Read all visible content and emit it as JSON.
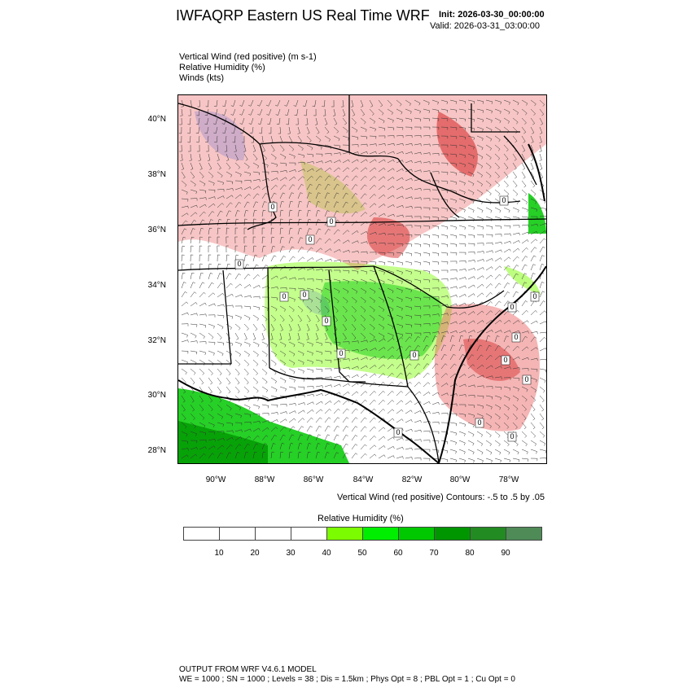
{
  "header": {
    "title": "IWFAQRP Eastern US Real Time WRF",
    "init": "Init: 2026-03-30_00:00:00",
    "valid": "Valid: 2026-03-31_03:00:00"
  },
  "fields": [
    "Vertical Wind (red positive)   (m s-1)",
    "Relative Humidity   (%)",
    "Winds   (kts)"
  ],
  "map": {
    "lat_labels": [
      "40°N",
      "38°N",
      "36°N",
      "34°N",
      "32°N",
      "30°N",
      "28°N"
    ],
    "lon_labels": [
      "90°W",
      "88°W",
      "86°W",
      "84°W",
      "82°W",
      "80°W",
      "78°W"
    ],
    "contour_labels": [
      "0",
      "0",
      "0",
      "0",
      "0",
      "0",
      "0",
      "0",
      "0",
      "0",
      "0",
      "0",
      "0",
      "0",
      "0",
      "0",
      "0",
      "0"
    ],
    "colors": {
      "vertical_up": "#cc0000",
      "vertical_down": "#1a3cd6",
      "state_lines": "#000000"
    }
  },
  "contour_note": "Vertical Wind (red positive) Contours: -.5 to .5 by .05",
  "colorbar": {
    "title": "Relative Humidity  (%)",
    "colors": [
      "#ffffff",
      "#ffffff",
      "#ffffff",
      "#ffffff",
      "#7cfc00",
      "#00ee00",
      "#00c800",
      "#009600",
      "#228b22",
      "#4f8b57"
    ],
    "labels": [
      "10",
      "20",
      "30",
      "40",
      "50",
      "60",
      "70",
      "80",
      "90"
    ]
  },
  "footer": {
    "line1": "OUTPUT FROM WRF V4.6.1 MODEL",
    "line2": "WE = 1000 ; SN = 1000 ; Levels = 38 ; Dis = 1.5km ; Phys Opt = 8 ; PBL Opt = 1 ; Cu Opt = 0"
  }
}
